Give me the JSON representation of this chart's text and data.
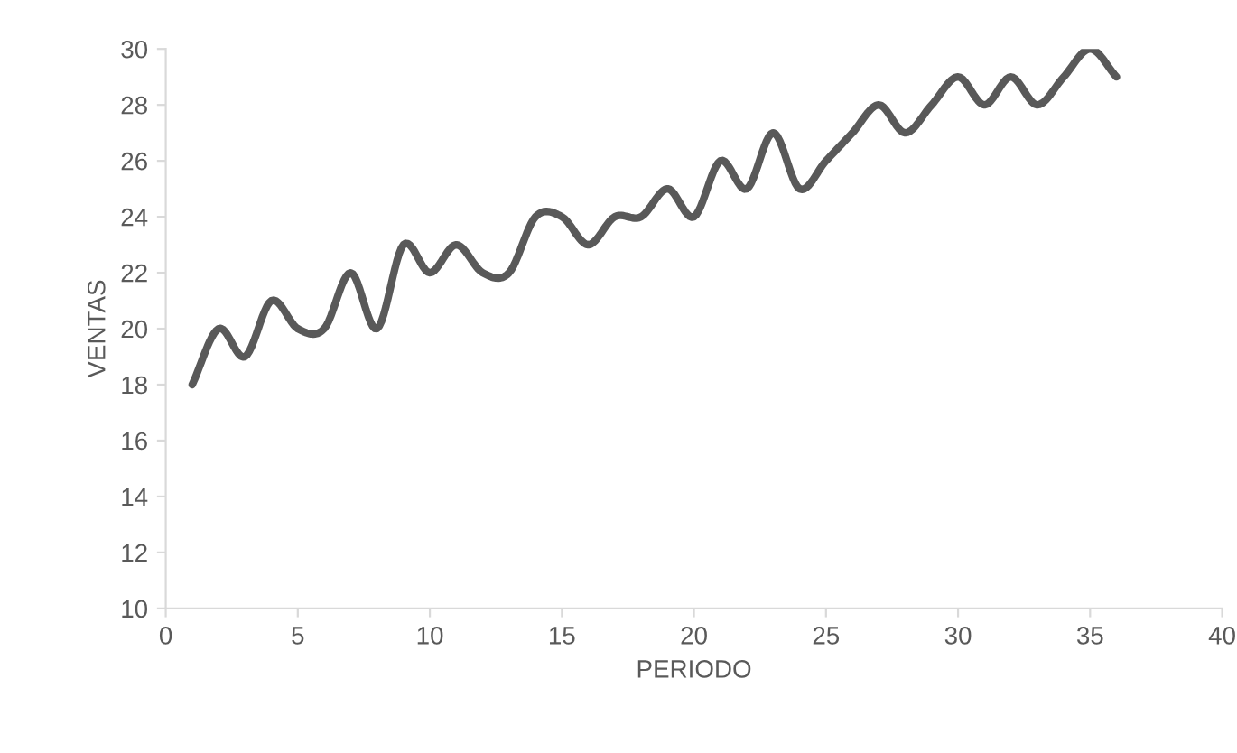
{
  "chart_data": {
    "type": "line",
    "xlabel": "PERIODO",
    "ylabel": "VENTAS",
    "x": [
      1,
      2,
      3,
      4,
      5,
      6,
      7,
      8,
      9,
      10,
      11,
      12,
      13,
      14,
      15,
      16,
      17,
      18,
      19,
      20,
      21,
      22,
      23,
      24,
      25,
      26,
      27,
      28,
      29,
      30,
      31,
      32,
      33,
      34,
      35,
      36
    ],
    "series": [
      {
        "color": "#595959",
        "values": [
          18,
          20,
          19,
          21,
          20,
          20,
          22,
          20,
          23,
          22,
          23,
          22,
          22,
          24,
          24,
          23,
          24,
          24,
          25,
          24,
          26,
          25,
          27,
          25,
          26,
          27,
          28,
          27,
          28,
          29,
          28,
          29,
          28,
          29,
          30,
          29
        ]
      }
    ],
    "xlim": [
      0,
      40
    ],
    "xticks": [
      0,
      5,
      10,
      15,
      20,
      25,
      30,
      35,
      40
    ],
    "ylim": [
      10,
      30
    ],
    "yticks": [
      10,
      12,
      14,
      16,
      18,
      20,
      22,
      24,
      26,
      28,
      30
    ],
    "grid": false,
    "marker": "none",
    "line_style": "solid"
  }
}
